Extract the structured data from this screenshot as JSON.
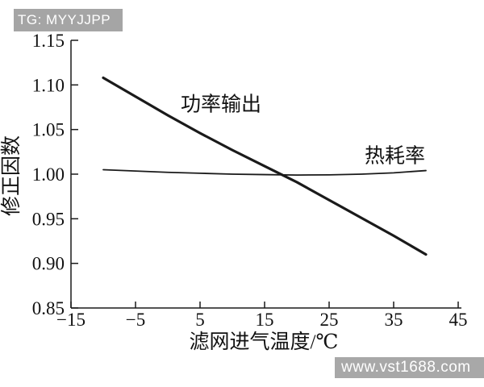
{
  "watermarks": {
    "top_badge": {
      "text": "TG: MYYJJPP",
      "bg": "#a5a5a5",
      "fg": "#ffffff"
    },
    "bottom_badge": {
      "text": "www.vst1688.com",
      "bg": "#a8a8a8",
      "fg": "#ffffff"
    }
  },
  "chart_data": {
    "type": "line",
    "title": "",
    "xlabel": "滤网进气温度/℃",
    "ylabel": "修正因数",
    "xlim": [
      -15,
      45
    ],
    "ylim": [
      0.85,
      1.15
    ],
    "x_ticks": [
      -15,
      -5,
      5,
      15,
      25,
      35,
      45
    ],
    "x_tick_labels": [
      "−15",
      "−5",
      "5",
      "15",
      "25",
      "35",
      "45"
    ],
    "y_ticks": [
      0.85,
      0.9,
      0.95,
      1.0,
      1.05,
      1.1,
      1.15
    ],
    "y_tick_labels": [
      "0.85",
      "0.90",
      "0.95",
      "1.00",
      "1.05",
      "1.10",
      "1.15"
    ],
    "grid": false,
    "legend_position": "inline-annotations",
    "line_color": "#1a1a1a",
    "x": [
      -10,
      -5,
      0,
      5,
      10,
      15,
      20,
      25,
      30,
      35,
      40
    ],
    "series": [
      {
        "name": "功率输出",
        "values": [
          1.108,
          1.087,
          1.066,
          1.046,
          1.027,
          1.009,
          0.991,
          0.971,
          0.951,
          0.931,
          0.91
        ],
        "label_anchor": {
          "x": 2.0,
          "y": 1.071
        }
      },
      {
        "name": "热耗率",
        "values": [
          1.005,
          1.0035,
          1.002,
          1.001,
          1.0,
          0.9995,
          0.999,
          0.9992,
          1.0,
          1.0015,
          1.004
        ],
        "label_anchor": {
          "x": 30.5,
          "y": 1.013
        }
      }
    ]
  }
}
